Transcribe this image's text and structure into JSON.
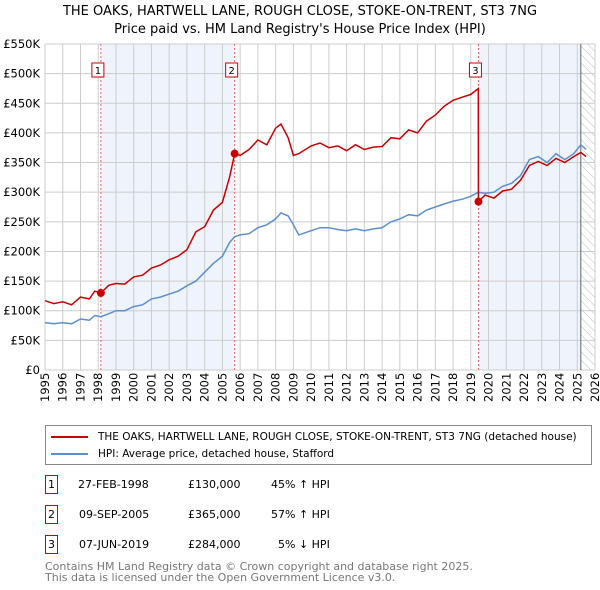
{
  "title": {
    "line1": "THE OAKS, HARTWELL LANE, ROUGH CLOSE, STOKE-ON-TRENT, ST3 7NG",
    "line2": "Price paid vs. HM Land Registry's House Price Index (HPI)"
  },
  "chart_data": {
    "type": "line",
    "title": "Price paid vs. HM Land Registry's House Price Index (HPI)",
    "xlim": [
      1995,
      2026
    ],
    "ylim": [
      0,
      550000
    ],
    "x_ticks": [
      "1995",
      "1996",
      "1997",
      "1998",
      "1999",
      "2000",
      "2001",
      "2002",
      "2003",
      "2004",
      "2005",
      "2006",
      "2007",
      "2008",
      "2009",
      "2010",
      "2011",
      "2012",
      "2013",
      "2014",
      "2015",
      "2016",
      "2017",
      "2018",
      "2019",
      "2020",
      "2021",
      "2022",
      "2023",
      "2024",
      "2025",
      "2026"
    ],
    "y_ticks": [
      {
        "v": 0,
        "label": "£0"
      },
      {
        "v": 50000,
        "label": "£50K"
      },
      {
        "v": 100000,
        "label": "£100K"
      },
      {
        "v": 150000,
        "label": "£150K"
      },
      {
        "v": 200000,
        "label": "£200K"
      },
      {
        "v": 250000,
        "label": "£250K"
      },
      {
        "v": 300000,
        "label": "£300K"
      },
      {
        "v": 350000,
        "label": "£350K"
      },
      {
        "v": 400000,
        "label": "£400K"
      },
      {
        "v": 450000,
        "label": "£450K"
      },
      {
        "v": 500000,
        "label": "£500K"
      },
      {
        "v": 550000,
        "label": "£550K"
      }
    ],
    "grid": true,
    "series": [
      {
        "name": "THE OAKS, HARTWELL LANE, ROUGH CLOSE, STOKE-ON-TRENT, ST3 7NG (detached house)",
        "color": "#cc0000",
        "x": [
          1995,
          1995.5,
          1996,
          1996.5,
          1997,
          1997.5,
          1997.8,
          1998.15,
          1998.6,
          1999,
          1999.5,
          2000,
          2000.5,
          2001,
          2001.5,
          2002,
          2002.5,
          2003,
          2003.5,
          2004,
          2004.5,
          2005,
          2005.4,
          2005.69,
          2006,
          2006.5,
          2007,
          2007.5,
          2008,
          2008.3,
          2008.7,
          2009,
          2009.3,
          2010,
          2010.5,
          2011,
          2011.5,
          2012,
          2012.5,
          2013,
          2013.5,
          2014,
          2014.5,
          2015,
          2015.5,
          2016,
          2016.5,
          2017,
          2017.5,
          2018,
          2018.5,
          2019,
          2019.42,
          2019.43,
          2019.8,
          2020.3,
          2020.8,
          2021.3,
          2021.8,
          2022.3,
          2022.8,
          2023.3,
          2023.8,
          2024.3,
          2024.8,
          2025.2,
          2025.5
        ],
        "y": [
          117000,
          112000,
          115000,
          110000,
          123000,
          120000,
          133000,
          130000,
          143000,
          146000,
          145000,
          157000,
          160000,
          172000,
          177000,
          186000,
          192000,
          203000,
          233000,
          242000,
          270000,
          283000,
          325000,
          365000,
          362000,
          372000,
          388000,
          380000,
          408000,
          415000,
          392000,
          362000,
          365000,
          378000,
          383000,
          375000,
          378000,
          370000,
          380000,
          372000,
          376000,
          377000,
          392000,
          390000,
          405000,
          400000,
          420000,
          430000,
          445000,
          455000,
          460000,
          465000,
          475000,
          284000,
          295000,
          290000,
          302000,
          305000,
          320000,
          345000,
          352000,
          345000,
          357000,
          350000,
          360000,
          367000,
          360000
        ]
      },
      {
        "name": "HPI: Average price, detached house, Stafford",
        "color": "#5b8fd0",
        "x": [
          1995,
          1995.5,
          1996,
          1996.5,
          1997,
          1997.5,
          1997.8,
          1998.15,
          1998.6,
          1999,
          1999.5,
          2000,
          2000.5,
          2001,
          2001.5,
          2002,
          2002.5,
          2003,
          2003.5,
          2004,
          2004.5,
          2005,
          2005.4,
          2005.69,
          2006,
          2006.5,
          2007,
          2007.5,
          2008,
          2008.3,
          2008.7,
          2009,
          2009.3,
          2010,
          2010.5,
          2011,
          2011.5,
          2012,
          2012.5,
          2013,
          2013.5,
          2014,
          2014.5,
          2015,
          2015.5,
          2016,
          2016.5,
          2017,
          2017.5,
          2018,
          2018.5,
          2019,
          2019.43,
          2019.8,
          2020.3,
          2020.8,
          2021.3,
          2021.8,
          2022.3,
          2022.8,
          2023.3,
          2023.8,
          2024.3,
          2024.8,
          2025.2,
          2025.5
        ],
        "y": [
          80000,
          78000,
          80000,
          78000,
          86000,
          84000,
          92000,
          90000,
          95000,
          100000,
          100000,
          107000,
          110000,
          120000,
          123000,
          128000,
          133000,
          142000,
          150000,
          165000,
          180000,
          192000,
          215000,
          225000,
          228000,
          230000,
          240000,
          245000,
          255000,
          265000,
          260000,
          245000,
          228000,
          235000,
          240000,
          240000,
          237000,
          235000,
          238000,
          235000,
          238000,
          240000,
          250000,
          255000,
          262000,
          260000,
          270000,
          275000,
          280000,
          285000,
          288000,
          293000,
          300000,
          298000,
          300000,
          310000,
          315000,
          328000,
          355000,
          360000,
          350000,
          365000,
          355000,
          365000,
          380000,
          372000
        ]
      }
    ],
    "sales": [
      {
        "id": "1",
        "x": 1998.15,
        "price": 130000
      },
      {
        "id": "2",
        "x": 2005.69,
        "price": 365000
      },
      {
        "id": "3",
        "x": 2019.43,
        "price": 284000
      }
    ],
    "shaded_periods": [
      [
        1998.15,
        2005.69
      ],
      [
        2019.43,
        2025.2
      ]
    ],
    "hatched_from": 2025.2
  },
  "legend": {
    "red": "THE OAKS, HARTWELL LANE, ROUGH CLOSE, STOKE-ON-TRENT, ST3 7NG (detached house)",
    "blue": "HPI: Average price, detached house, Stafford"
  },
  "rows": [
    {
      "num": "1",
      "date": "27-FEB-1998",
      "price": "£130,000",
      "hpi": "45% ↑ HPI"
    },
    {
      "num": "2",
      "date": "09-SEP-2005",
      "price": "£365,000",
      "hpi": "57% ↑ HPI"
    },
    {
      "num": "3",
      "date": "07-JUN-2019",
      "price": "£284,000",
      "hpi": "5% ↓ HPI"
    }
  ],
  "footer": {
    "line1": "Contains HM Land Registry data © Crown copyright and database right 2025.",
    "line2": "This data is licensed under the Open Government Licence v3.0."
  }
}
